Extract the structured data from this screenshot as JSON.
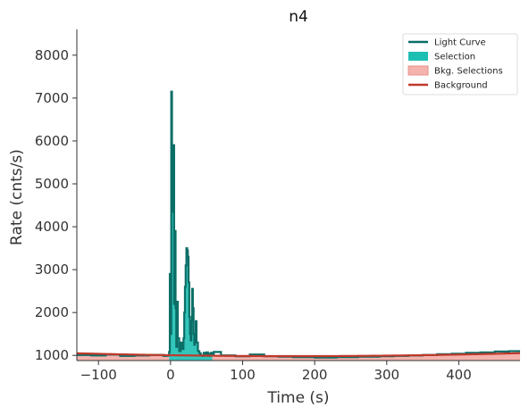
{
  "chart_data": {
    "type": "line",
    "title": "n4",
    "xlabel": "Time (s)",
    "ylabel": "Rate (cnts/s)",
    "xlim": [
      -130,
      485
    ],
    "ylim": [
      880,
      8600
    ],
    "xticks": [
      -100,
      0,
      100,
      200,
      300,
      400
    ],
    "yticks": [
      1000,
      2000,
      3000,
      4000,
      5000,
      6000,
      7000,
      8000
    ],
    "legend_position": "top-right",
    "grid": false,
    "colors": {
      "light_curve": "#0b6e67",
      "selection": "#1dbfb3",
      "bkg_selection": "#f4b3ad",
      "background": "#c0392b"
    },
    "legend": [
      {
        "label": "Light Curve",
        "kind": "line",
        "color": "#0b6e67"
      },
      {
        "label": "Selection",
        "kind": "patch",
        "color": "#1dbfb3"
      },
      {
        "label": "Bkg. Selections",
        "kind": "patch",
        "color": "#f4b3ad"
      },
      {
        "label": "Background",
        "kind": "line",
        "color": "#c0392b"
      }
    ],
    "selection_range": [
      -2,
      58
    ],
    "bkg_selections": [
      [
        -130,
        -2
      ],
      [
        58,
        485
      ]
    ],
    "background_model": {
      "a": 1005,
      "b": -0.25,
      "c": 0.00072
    },
    "series": [
      {
        "name": "Light Curve",
        "points": [
          [
            -130,
            1010
          ],
          [
            -110,
            1000
          ],
          [
            -90,
            1020
          ],
          [
            -70,
            990
          ],
          [
            -50,
            1000
          ],
          [
            -30,
            1010
          ],
          [
            -10,
            990
          ],
          [
            -4,
            1000
          ],
          [
            -2,
            1080
          ],
          [
            -1,
            2900
          ],
          [
            0,
            1500
          ],
          [
            1,
            7150
          ],
          [
            2,
            4600
          ],
          [
            3,
            4350
          ],
          [
            4,
            5900
          ],
          [
            5,
            2200
          ],
          [
            6,
            3900
          ],
          [
            7,
            2100
          ],
          [
            8,
            1200
          ],
          [
            9,
            2250
          ],
          [
            10,
            1400
          ],
          [
            12,
            1100
          ],
          [
            14,
            1300
          ],
          [
            16,
            1150
          ],
          [
            18,
            1400
          ],
          [
            19,
            2000
          ],
          [
            20,
            2600
          ],
          [
            21,
            3100
          ],
          [
            22,
            3500
          ],
          [
            23,
            3450
          ],
          [
            24,
            3300
          ],
          [
            25,
            2700
          ],
          [
            26,
            1900
          ],
          [
            27,
            1500
          ],
          [
            28,
            1350
          ],
          [
            29,
            1800
          ],
          [
            30,
            2550
          ],
          [
            31,
            2100
          ],
          [
            32,
            1500
          ],
          [
            33,
            1250
          ],
          [
            34,
            1400
          ],
          [
            35,
            1800
          ],
          [
            36,
            1300
          ],
          [
            38,
            1100
          ],
          [
            40,
            1050
          ],
          [
            42,
            1000
          ],
          [
            44,
            990
          ],
          [
            46,
            1060
          ],
          [
            48,
            1020
          ],
          [
            50,
            1070
          ],
          [
            52,
            990
          ],
          [
            54,
            1040
          ],
          [
            56,
            1060
          ],
          [
            58,
            1010
          ],
          [
            60,
            1080
          ],
          [
            70,
            1000
          ],
          [
            90,
            980
          ],
          [
            110,
            1020
          ],
          [
            130,
            980
          ],
          [
            150,
            970
          ],
          [
            170,
            960
          ],
          [
            200,
            950
          ],
          [
            230,
            960
          ],
          [
            260,
            970
          ],
          [
            290,
            980
          ],
          [
            310,
            990
          ],
          [
            330,
            1000
          ],
          [
            350,
            1010
          ],
          [
            370,
            1030
          ],
          [
            390,
            1040
          ],
          [
            410,
            1060
          ],
          [
            430,
            1070
          ],
          [
            450,
            1090
          ],
          [
            470,
            1100
          ],
          [
            485,
            1120
          ]
        ]
      }
    ]
  }
}
